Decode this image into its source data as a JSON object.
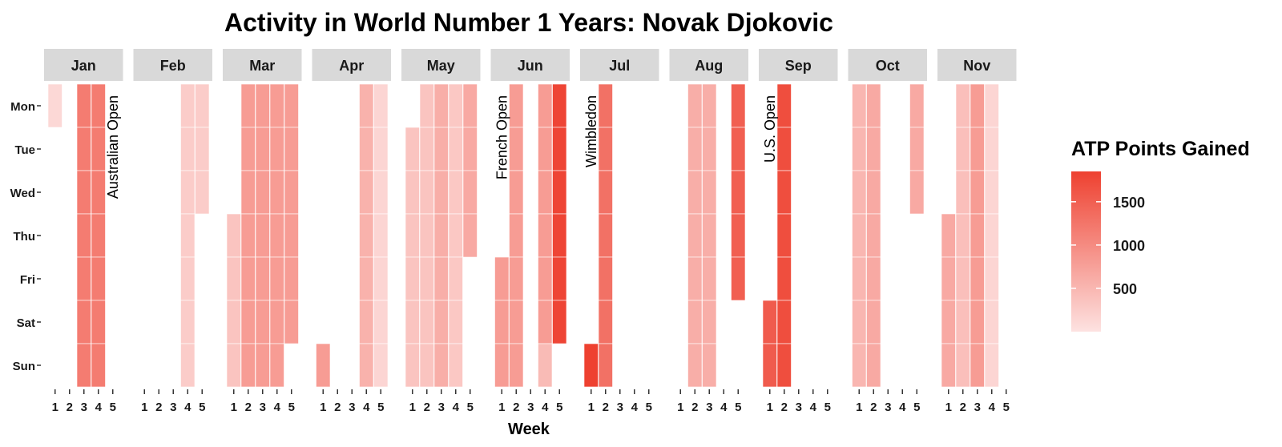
{
  "chart_data": {
    "type": "heatmap",
    "title": "Activity in World Number 1 Years: Novak Djokovic",
    "xlabel": "Week",
    "ylabel": "",
    "months": [
      "Jan",
      "Feb",
      "Mar",
      "Apr",
      "May",
      "Jun",
      "Jul",
      "Aug",
      "Sep",
      "Oct",
      "Nov"
    ],
    "days": [
      "Mon",
      "Tue",
      "Wed",
      "Thu",
      "Fri",
      "Sat",
      "Sun"
    ],
    "weeks": [
      "1",
      "2",
      "3",
      "4",
      "5"
    ],
    "legend": {
      "title": "ATP Points Gained",
      "breaks": [
        "1500",
        "1000",
        "500"
      ],
      "low_color": "#fde2e1",
      "high_color": "#ee4130"
    },
    "value_range": [
      0,
      1850
    ],
    "cells": {
      "Jan": [
        [
          120,
          0,
          0,
          0,
          0,
          0,
          0
        ],
        [
          0,
          0,
          0,
          0,
          0,
          0,
          0
        ],
        [
          1170,
          1170,
          1170,
          1170,
          1170,
          1170,
          1170
        ],
        [
          1170,
          1170,
          1170,
          1170,
          1170,
          1170,
          1170
        ],
        [
          0,
          0,
          0,
          0,
          0,
          0,
          0
        ]
      ],
      "Feb": [
        [
          0,
          0,
          0,
          0,
          0,
          0,
          0
        ],
        [
          0,
          0,
          0,
          0,
          0,
          0,
          0
        ],
        [
          0,
          0,
          0,
          0,
          0,
          0,
          0
        ],
        [
          250,
          250,
          250,
          250,
          250,
          250,
          250
        ],
        [
          250,
          250,
          250,
          0,
          0,
          0,
          0
        ]
      ],
      "Mar": [
        [
          0,
          0,
          0,
          350,
          350,
          350,
          350
        ],
        [
          800,
          800,
          800,
          800,
          800,
          800,
          800
        ],
        [
          800,
          800,
          800,
          800,
          800,
          800,
          800
        ],
        [
          800,
          800,
          800,
          800,
          800,
          800,
          800
        ],
        [
          800,
          800,
          800,
          800,
          800,
          800,
          0
        ]
      ],
      "Apr": [
        [
          0,
          0,
          0,
          0,
          0,
          0,
          800
        ],
        [
          0,
          0,
          0,
          0,
          0,
          0,
          0
        ],
        [
          0,
          0,
          0,
          0,
          0,
          0,
          0
        ],
        [
          550,
          550,
          550,
          550,
          550,
          550,
          550
        ],
        [
          150,
          150,
          150,
          150,
          150,
          150,
          150
        ]
      ],
      "May": [
        [
          0,
          350,
          350,
          350,
          350,
          350,
          350
        ],
        [
          350,
          350,
          350,
          350,
          350,
          350,
          350
        ],
        [
          600,
          600,
          600,
          600,
          600,
          600,
          600
        ],
        [
          300,
          300,
          300,
          300,
          300,
          300,
          300
        ],
        [
          650,
          650,
          650,
          650,
          0,
          0,
          0
        ]
      ],
      "Jun": [
        [
          0,
          0,
          0,
          0,
          800,
          800,
          800
        ],
        [
          800,
          800,
          800,
          800,
          800,
          800,
          800
        ],
        [
          0,
          0,
          0,
          0,
          0,
          0,
          0
        ],
        [
          800,
          800,
          800,
          800,
          800,
          800,
          450
        ],
        [
          1800,
          1800,
          1800,
          1800,
          1800,
          1800,
          0
        ]
      ],
      "Jul": [
        [
          0,
          0,
          0,
          0,
          0,
          0,
          1850
        ],
        [
          1300,
          1300,
          1300,
          1300,
          1300,
          1300,
          1300
        ],
        [
          0,
          0,
          0,
          0,
          0,
          0,
          0
        ],
        [
          0,
          0,
          0,
          0,
          0,
          0,
          0
        ],
        [
          0,
          0,
          0,
          0,
          0,
          0,
          0
        ]
      ],
      "Aug": [
        [
          0,
          0,
          0,
          0,
          0,
          0,
          0
        ],
        [
          600,
          600,
          600,
          600,
          600,
          600,
          600
        ],
        [
          600,
          600,
          600,
          600,
          600,
          600,
          600
        ],
        [
          0,
          0,
          0,
          0,
          0,
          0,
          0
        ],
        [
          1500,
          1500,
          1500,
          1500,
          1500,
          0,
          0
        ]
      ],
      "Sep": [
        [
          0,
          0,
          0,
          0,
          0,
          1550,
          1550
        ],
        [
          1700,
          1700,
          1700,
          1700,
          1700,
          1700,
          1700
        ],
        [
          0,
          0,
          0,
          0,
          0,
          0,
          0
        ],
        [
          0,
          0,
          0,
          0,
          0,
          0,
          0
        ],
        [
          0,
          0,
          0,
          0,
          0,
          0,
          0
        ]
      ],
      "Oct": [
        [
          500,
          500,
          500,
          500,
          500,
          500,
          500
        ],
        [
          650,
          650,
          650,
          650,
          650,
          650,
          650
        ],
        [
          0,
          0,
          0,
          0,
          0,
          0,
          0
        ],
        [
          0,
          0,
          0,
          0,
          0,
          0,
          0
        ],
        [
          650,
          650,
          650,
          0,
          0,
          0,
          0
        ]
      ],
      "Nov": [
        [
          0,
          0,
          0,
          650,
          650,
          650,
          650
        ],
        [
          400,
          400,
          400,
          400,
          400,
          400,
          400
        ],
        [
          800,
          800,
          800,
          800,
          800,
          800,
          800
        ],
        [
          150,
          150,
          150,
          150,
          150,
          150,
          150
        ],
        [
          0,
          0,
          0,
          0,
          0,
          0,
          0
        ]
      ]
    },
    "annotations": [
      {
        "month": "Jan",
        "week": 5,
        "text": "Australian Open"
      },
      {
        "month": "Jun",
        "week": 1,
        "text": "French Open"
      },
      {
        "month": "Jul",
        "week": 1,
        "text": "Wimbledon"
      },
      {
        "month": "Sep",
        "week": 1,
        "text": "U.S. Open"
      }
    ]
  }
}
